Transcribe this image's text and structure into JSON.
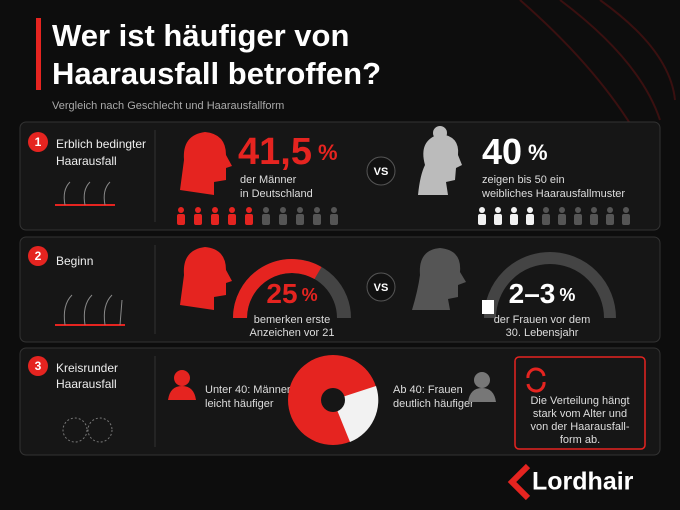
{
  "header": {
    "title": [
      "Wer ist häufiger von",
      "Haarausfall betroffen?"
    ],
    "subtitle": "Vergleich nach Geschlecht und Haarausfallform"
  },
  "rows": [
    {
      "number": "1",
      "label": [
        "Erblich bedingter",
        "Haarausfall"
      ],
      "left": {
        "value": "41,5",
        "unit": "%",
        "text": [
          "der Männer",
          "in Deutschland"
        ]
      },
      "vs": "VS",
      "right": {
        "value": "40",
        "unit": "%",
        "text": [
          "zeigen bis 50 ein",
          "weibliches Haarausfallmuster"
        ]
      }
    },
    {
      "number": "2",
      "label": [
        "Beginn"
      ],
      "left": {
        "value": "25",
        "unit": "%",
        "text": [
          "bemerken erste",
          "Anzeichen vor 21"
        ]
      },
      "vs": "VS",
      "right": {
        "value": "2–3",
        "unit": "%",
        "text": [
          "der Frauen vor dem",
          "30. Lebensjahr"
        ]
      }
    },
    {
      "number": "3",
      "label": [
        "Kreisrunder",
        "Haarausfall"
      ],
      "left": {
        "text": [
          "Unter 40: Männer",
          "leicht häufiger"
        ]
      },
      "right": {
        "text": [
          "Ab 40: Frauen",
          "deutlich häufiger"
        ]
      },
      "note": [
        "Die Verteilung hängt",
        "stark vom Alter und",
        "von der Haarausfall-",
        "form ab."
      ]
    }
  ],
  "logo": "Lordhair"
}
